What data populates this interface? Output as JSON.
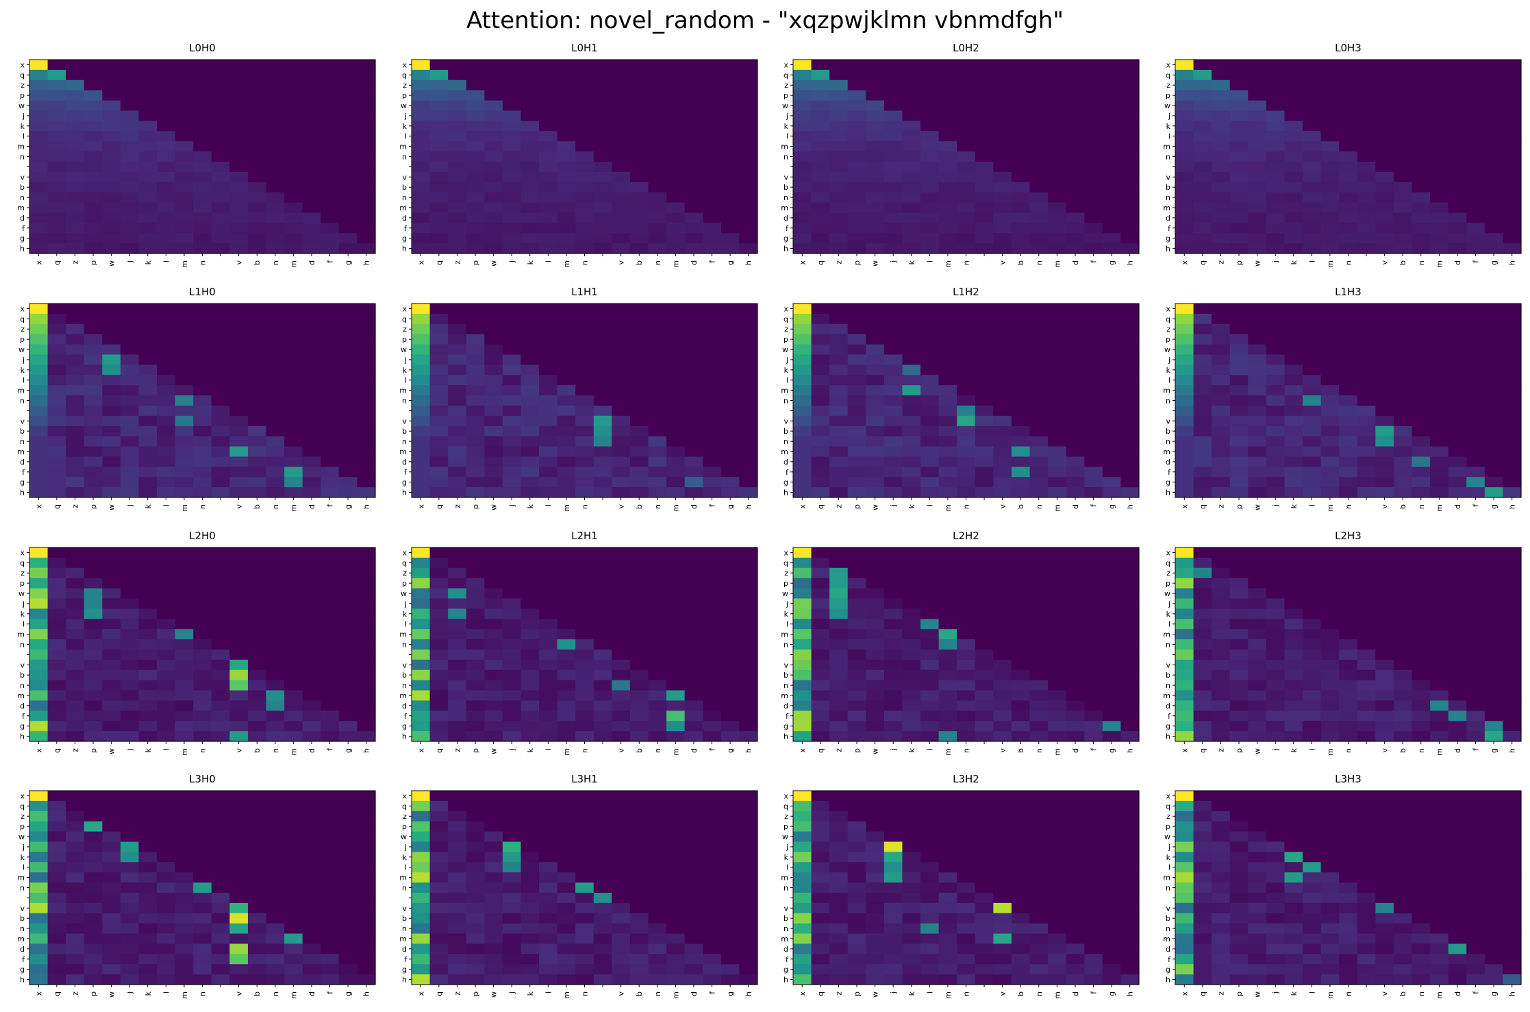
{
  "figure": {
    "title": "Attention: novel_random - \"xqzpwjklmn vbnmdfgh\""
  },
  "chart_data": {
    "type": "heatmap",
    "layout": "4x4 grid",
    "tokens": [
      "x",
      "q",
      "z",
      "p",
      "w",
      "j",
      "k",
      "l",
      "m",
      "n",
      " ",
      "v",
      "b",
      "n",
      "m",
      "d",
      "f",
      "g",
      "h"
    ],
    "colormap": "viridis",
    "mask": "causal (upper triangle = 0)",
    "color_range": [
      0,
      1
    ],
    "panels": [
      {
        "title": "L0H0",
        "pattern": "uniform-decay",
        "peaks": []
      },
      {
        "title": "L0H1",
        "pattern": "uniform-decay",
        "peaks": []
      },
      {
        "title": "L0H2",
        "pattern": "uniform-decay",
        "peaks": []
      },
      {
        "title": "L0H3",
        "pattern": "uniform-decay",
        "peaks": []
      },
      {
        "title": "L1H0",
        "pattern": "first-plus-columns",
        "peaks": [
          [
            5,
            4,
            0.55
          ],
          [
            6,
            4,
            0.5
          ],
          [
            9,
            8,
            0.45
          ],
          [
            11,
            8,
            0.4
          ],
          [
            14,
            11,
            0.55
          ],
          [
            16,
            14,
            0.55
          ],
          [
            17,
            14,
            0.45
          ]
        ]
      },
      {
        "title": "L1H1",
        "pattern": "first-plus-columns",
        "peaks": [
          [
            11,
            10,
            0.55
          ],
          [
            12,
            10,
            0.5
          ],
          [
            13,
            10,
            0.45
          ],
          [
            17,
            15,
            0.3
          ]
        ]
      },
      {
        "title": "L1H2",
        "pattern": "first-plus-columns",
        "peaks": [
          [
            8,
            6,
            0.55
          ],
          [
            11,
            9,
            0.6
          ],
          [
            10,
            9,
            0.45
          ],
          [
            14,
            12,
            0.5
          ],
          [
            16,
            12,
            0.5
          ],
          [
            6,
            6,
            0.35
          ]
        ]
      },
      {
        "title": "L1H3",
        "pattern": "first-plus-columns",
        "peaks": [
          [
            9,
            7,
            0.45
          ],
          [
            12,
            11,
            0.55
          ],
          [
            13,
            11,
            0.5
          ],
          [
            15,
            13,
            0.4
          ],
          [
            17,
            16,
            0.45
          ],
          [
            18,
            17,
            0.55
          ]
        ]
      },
      {
        "title": "L2H0",
        "pattern": "first-strong-sparse",
        "peaks": [
          [
            4,
            3,
            0.45
          ],
          [
            5,
            3,
            0.45
          ],
          [
            6,
            3,
            0.5
          ],
          [
            8,
            8,
            0.45
          ],
          [
            12,
            11,
            0.85
          ],
          [
            13,
            11,
            0.75
          ],
          [
            11,
            11,
            0.6
          ],
          [
            14,
            13,
            0.5
          ],
          [
            15,
            13,
            0.45
          ],
          [
            18,
            11,
            0.55
          ]
        ]
      },
      {
        "title": "L2H1",
        "pattern": "first-strong-sparse",
        "peaks": [
          [
            4,
            2,
            0.5
          ],
          [
            6,
            2,
            0.45
          ],
          [
            9,
            8,
            0.5
          ],
          [
            13,
            11,
            0.4
          ],
          [
            14,
            14,
            0.55
          ],
          [
            16,
            14,
            0.7
          ],
          [
            17,
            14,
            0.5
          ]
        ]
      },
      {
        "title": "L2H2",
        "pattern": "first-strong-sparse",
        "peaks": [
          [
            2,
            2,
            0.55
          ],
          [
            3,
            2,
            0.55
          ],
          [
            4,
            2,
            0.6
          ],
          [
            5,
            2,
            0.55
          ],
          [
            6,
            2,
            0.5
          ],
          [
            7,
            7,
            0.45
          ],
          [
            8,
            8,
            0.6
          ],
          [
            9,
            8,
            0.45
          ],
          [
            17,
            17,
            0.45
          ],
          [
            18,
            8,
            0.45
          ]
        ]
      },
      {
        "title": "L2H3",
        "pattern": "first-strong-sparse",
        "peaks": [
          [
            2,
            1,
            0.45
          ],
          [
            7,
            0,
            0.7
          ],
          [
            15,
            14,
            0.45
          ],
          [
            16,
            15,
            0.45
          ],
          [
            18,
            17,
            0.6
          ],
          [
            17,
            17,
            0.45
          ]
        ]
      },
      {
        "title": "L3H0",
        "pattern": "first-strong-sparse",
        "peaks": [
          [
            3,
            3,
            0.6
          ],
          [
            5,
            5,
            0.55
          ],
          [
            6,
            5,
            0.5
          ],
          [
            9,
            9,
            0.55
          ],
          [
            11,
            11,
            0.65
          ],
          [
            12,
            11,
            0.95
          ],
          [
            13,
            11,
            0.6
          ],
          [
            14,
            14,
            0.55
          ],
          [
            15,
            11,
            0.85
          ],
          [
            16,
            11,
            0.75
          ]
        ]
      },
      {
        "title": "L3H1",
        "pattern": "first-strong-sparse",
        "peaks": [
          [
            5,
            5,
            0.65
          ],
          [
            6,
            5,
            0.55
          ],
          [
            7,
            5,
            0.45
          ],
          [
            9,
            9,
            0.55
          ],
          [
            10,
            10,
            0.5
          ]
        ]
      },
      {
        "title": "L3H2",
        "pattern": "first-strong-sparse",
        "peaks": [
          [
            5,
            5,
            0.95
          ],
          [
            6,
            5,
            0.6
          ],
          [
            7,
            5,
            0.5
          ],
          [
            8,
            5,
            0.55
          ],
          [
            11,
            11,
            0.9
          ],
          [
            14,
            11,
            0.6
          ],
          [
            13,
            7,
            0.45
          ]
        ]
      },
      {
        "title": "L3H3",
        "pattern": "first-strong-sparse",
        "peaks": [
          [
            6,
            6,
            0.6
          ],
          [
            7,
            7,
            0.55
          ],
          [
            8,
            6,
            0.55
          ],
          [
            11,
            11,
            0.45
          ],
          [
            15,
            15,
            0.55
          ],
          [
            18,
            18,
            0.3
          ]
        ]
      }
    ]
  }
}
